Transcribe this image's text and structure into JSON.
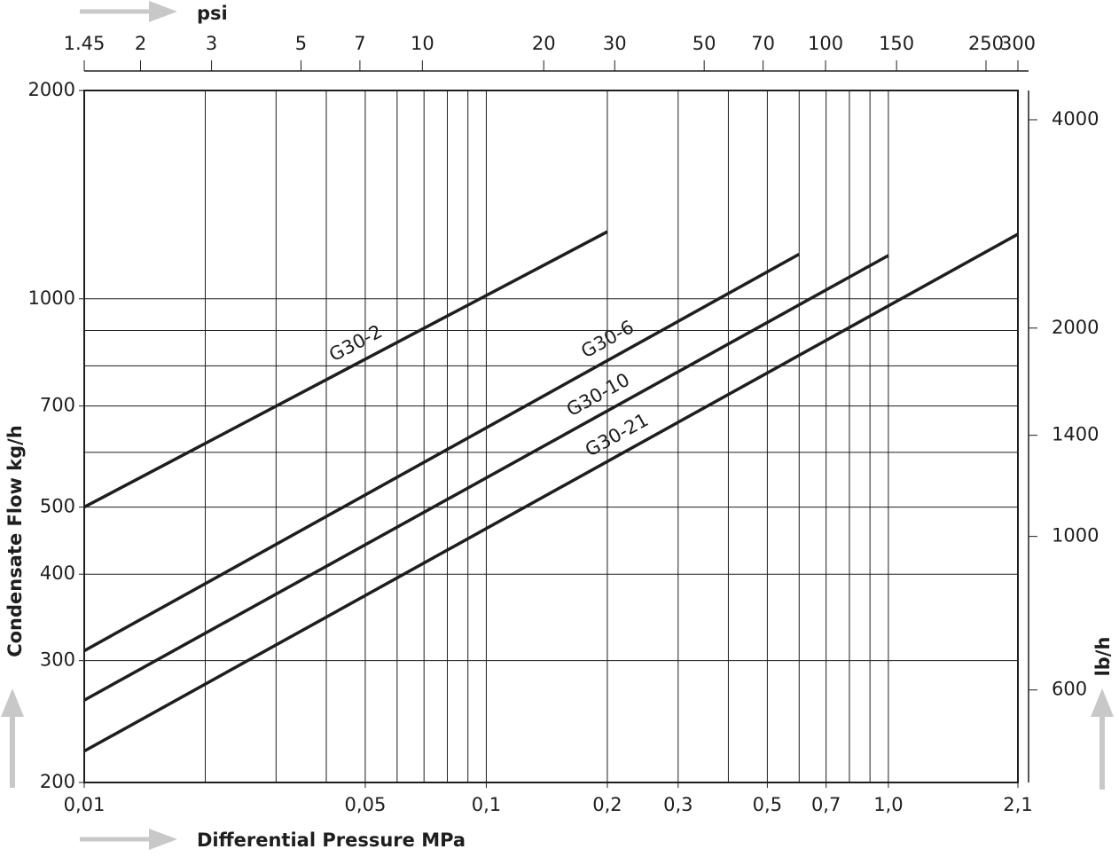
{
  "chart_data": {
    "type": "line",
    "x_label": "Differential Pressure MPa",
    "y_label": "Condensate Flow kg/h",
    "y2_label": "lb/h",
    "x2_label": "psi",
    "log_x": true,
    "log_y": true,
    "grid": true,
    "color": "#1e1e1e",
    "xlim": [
      0.01,
      2.1
    ],
    "xticks": [
      {
        "value": 0.01,
        "label": "0,01"
      },
      {
        "value": 0.05,
        "label": "0,05"
      },
      {
        "value": 0.1,
        "label": "0,1"
      },
      {
        "value": 0.2,
        "label": "0,2"
      },
      {
        "value": 0.3,
        "label": "0,3"
      },
      {
        "value": 0.5,
        "label": "0,5"
      },
      {
        "value": 0.7,
        "label": "0,7"
      },
      {
        "value": 1.0,
        "label": "1,0"
      },
      {
        "value": 2.1,
        "label": "2,1"
      }
    ],
    "xgrid": [
      0.02,
      0.03,
      0.04,
      0.05,
      0.06,
      0.07,
      0.08,
      0.09,
      0.1,
      0.2,
      0.3,
      0.4,
      0.5,
      0.6,
      0.7,
      0.8,
      0.9,
      1.0
    ],
    "x2lim": [
      1.45,
      300
    ],
    "x2ticks": [
      1.45,
      2,
      3,
      5,
      7,
      10,
      20,
      30,
      50,
      70,
      100,
      150,
      250,
      300
    ],
    "ylim": [
      200,
      2000
    ],
    "yticks": [
      200,
      300,
      400,
      500,
      700,
      1000,
      2000
    ],
    "ygrid": [
      300,
      400,
      500,
      600,
      700,
      800,
      900,
      1000
    ],
    "y2lim": [
      441,
      4409
    ],
    "y2ticks": [
      600,
      1000,
      1400,
      2000,
      4000
    ],
    "series": [
      {
        "name": "G30-2",
        "x": [
          0.01,
          0.2
        ],
        "values": [
          500,
          1250
        ]
      },
      {
        "name": "G30-6",
        "x": [
          0.01,
          0.6
        ],
        "values": [
          310,
          1160
        ]
      },
      {
        "name": "G30-10",
        "x": [
          0.01,
          1.0
        ],
        "values": [
          263,
          1155
        ]
      },
      {
        "name": "G30-21",
        "x": [
          0.01,
          2.1
        ],
        "values": [
          222,
          1240
        ]
      }
    ]
  }
}
